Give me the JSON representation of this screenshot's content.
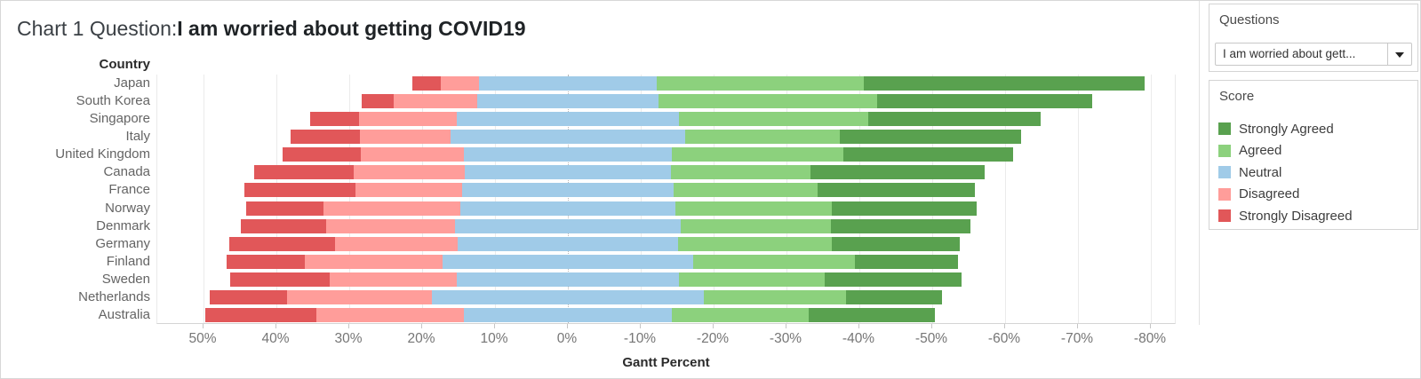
{
  "title": {
    "prefix": "Chart 1 Question:",
    "question": "I am worried about getting COVID19"
  },
  "chart_data": {
    "type": "bar",
    "variant": "diverging-stacked-likert-gantt",
    "title": "Chart 1 Question: I am worried about getting COVID19",
    "row_header": "Country",
    "xlabel": "Gantt Percent",
    "categories": [
      "Japan",
      "South Korea",
      "Singapore",
      "Italy",
      "United Kingdom",
      "Canada",
      "France",
      "Norway",
      "Denmark",
      "Germany",
      "Finland",
      "Sweden",
      "Netherlands",
      "Australia"
    ],
    "series": [
      {
        "name": "Strongly Disagreed",
        "color": "#e15759",
        "values": [
          3.9,
          4.4,
          6.7,
          9.5,
          10.8,
          13.6,
          15.3,
          10.6,
          11.7,
          14.5,
          10.7,
          13.6,
          10.6,
          15.2
        ]
      },
      {
        "name": "Disagreed",
        "color": "#ff9d9a",
        "values": [
          5.2,
          11.5,
          13.4,
          12.4,
          14.1,
          15.3,
          14.6,
          18.7,
          17.7,
          16.9,
          19.0,
          17.5,
          19.8,
          20.2
        ]
      },
      {
        "name": "Neutral",
        "color": "#a0cbe8",
        "values": [
          24.4,
          24.8,
          30.6,
          32.2,
          28.6,
          28.2,
          29.0,
          29.6,
          31.0,
          30.2,
          34.3,
          30.4,
          37.4,
          28.6
        ]
      },
      {
        "name": "Agreed",
        "color": "#8cd17d",
        "values": [
          28.4,
          30.0,
          25.9,
          21.2,
          23.5,
          19.2,
          19.8,
          21.4,
          20.6,
          21.1,
          22.3,
          20.1,
          19.5,
          18.7
        ]
      },
      {
        "name": "Strongly Agreed",
        "color": "#59a14f",
        "values": [
          38.5,
          29.5,
          23.7,
          24.9,
          23.3,
          23.9,
          21.6,
          19.9,
          19.2,
          17.6,
          14.1,
          18.7,
          13.1,
          17.4
        ]
      }
    ],
    "bar_alignment": "neutral segment centered on 0; bar left edge value = strongly_disagreed + disagreed + neutral/2 on the positive (left) side",
    "x_tick_values": [
      50,
      40,
      30,
      20,
      10,
      0,
      -10,
      -20,
      -30,
      -40,
      -50,
      -60,
      -70,
      -80
    ],
    "x_tick_labels": [
      "50%",
      "40%",
      "30%",
      "20%",
      "10%",
      "0%",
      "-10%",
      "-20%",
      "-30%",
      "-40%",
      "-50%",
      "-60%",
      "-70%",
      "-80%"
    ],
    "xlim": [
      56.3,
      -83.5
    ],
    "x_axis_reversed": true,
    "grid": true,
    "legend_position": "right"
  },
  "questions_panel": {
    "title": "Questions",
    "selected": "I am worried about gett..."
  },
  "legend": {
    "title": "Score",
    "items": [
      {
        "label": "Strongly Agreed",
        "color": "#59a14f"
      },
      {
        "label": "Agreed",
        "color": "#8cd17d"
      },
      {
        "label": "Neutral",
        "color": "#a0cbe8"
      },
      {
        "label": "Disagreed",
        "color": "#ff9d9a"
      },
      {
        "label": "Strongly Disagreed",
        "color": "#e15759"
      }
    ]
  }
}
